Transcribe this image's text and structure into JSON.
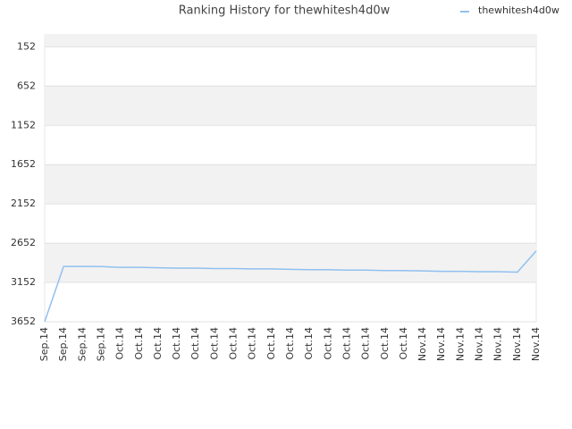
{
  "chart_data": {
    "type": "line",
    "title": "Ranking History for thewhitesh4d0w",
    "categories": [
      "Sep.14",
      "Sep.14",
      "Sep.14",
      "Sep.14",
      "Oct.14",
      "Oct.14",
      "Oct.14",
      "Oct.14",
      "Oct.14",
      "Oct.14",
      "Oct.14",
      "Oct.14",
      "Oct.14",
      "Oct.14",
      "Oct.14",
      "Oct.14",
      "Oct.14",
      "Oct.14",
      "Oct.14",
      "Oct.14",
      "Nov.14",
      "Nov.14",
      "Nov.14",
      "Nov.14",
      "Nov.14",
      "Nov.14",
      "Nov.14"
    ],
    "series": [
      {
        "name": "thewhitesh4d0w",
        "color": "#90c0f0",
        "values": [
          3650,
          2948,
          2948,
          2950,
          2960,
          2960,
          2965,
          2970,
          2970,
          2975,
          2975,
          2980,
          2980,
          2985,
          2990,
          2990,
          2995,
          2995,
          3000,
          3000,
          3005,
          3010,
          3010,
          3015,
          3015,
          3020,
          2750
        ]
      }
    ],
    "ylim": [
      3652,
      0
    ],
    "yticks": [
      152,
      652,
      1152,
      1652,
      2152,
      2652,
      3152,
      3652
    ],
    "grid": true,
    "legend": "top-right"
  }
}
